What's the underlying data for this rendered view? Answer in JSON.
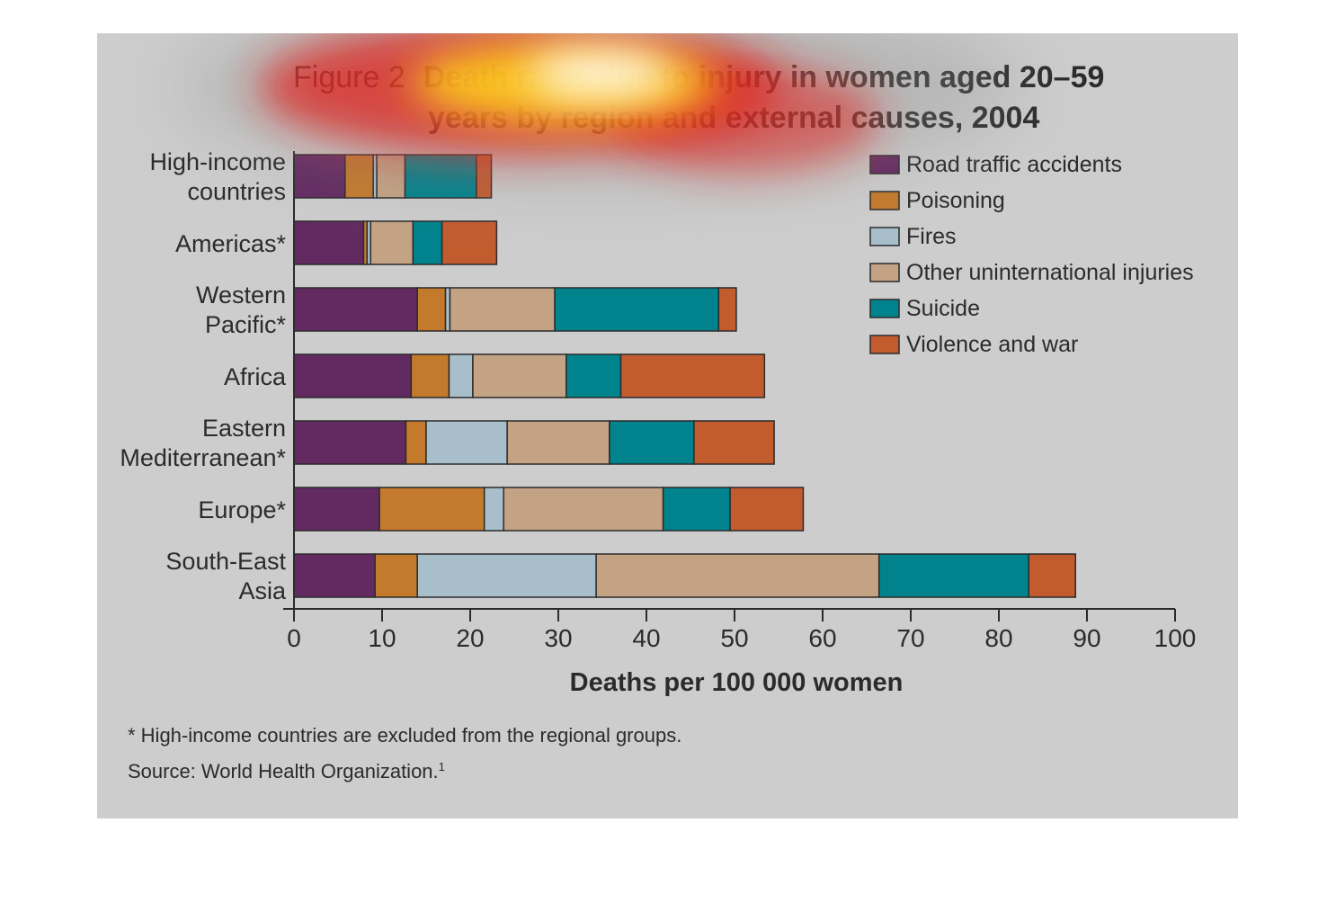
{
  "figure": {
    "label": "Figure 2",
    "title_line1": "Death rates due to injury in women aged 20–59",
    "title_line2": "years by region and external causes, 2004"
  },
  "chart_data": {
    "type": "bar",
    "orientation": "horizontal",
    "stacked": true,
    "categories": [
      [
        "High-income",
        "countries"
      ],
      [
        "Americas*"
      ],
      [
        "Western",
        "Pacific*"
      ],
      [
        "Africa"
      ],
      [
        "Eastern",
        "Mediterranean*"
      ],
      [
        "Europe*"
      ],
      [
        "South-East",
        "Asia"
      ]
    ],
    "series": [
      {
        "name": "Road traffic accidents",
        "color": "#632a62",
        "values": [
          5.8,
          7.9,
          14.0,
          13.3,
          12.7,
          9.7,
          9.2
        ]
      },
      {
        "name": "Poisoning",
        "color": "#c37a2d",
        "values": [
          3.2,
          0.4,
          3.2,
          4.3,
          2.3,
          11.9,
          4.8
        ]
      },
      {
        "name": "Fires",
        "color": "#a8bfcb",
        "values": [
          0.4,
          0.4,
          0.5,
          2.7,
          9.2,
          2.2,
          20.3
        ]
      },
      {
        "name": "Other uninternational injuries",
        "color": "#c4a284",
        "values": [
          3.2,
          4.8,
          11.9,
          10.6,
          11.6,
          18.1,
          32.1
        ]
      },
      {
        "name": "Suicide",
        "color": "#00838d",
        "values": [
          8.1,
          3.3,
          18.6,
          6.2,
          9.6,
          7.6,
          17.0
        ]
      },
      {
        "name": "Violence and war",
        "color": "#c25c2f",
        "values": [
          1.7,
          6.2,
          2.0,
          16.3,
          9.1,
          8.3,
          5.3
        ]
      }
    ],
    "xlabel": "Deaths per 100 000 women",
    "xlim": [
      0,
      100
    ],
    "xticks": [
      0,
      10,
      20,
      30,
      40,
      50,
      60,
      70,
      80,
      90,
      100
    ],
    "legend_position": "top-right",
    "grid": false
  },
  "footnotes": {
    "note": "* High-income countries are excluded from the regional groups.",
    "source": "Source: World Health Organization.",
    "source_ref": "1"
  }
}
